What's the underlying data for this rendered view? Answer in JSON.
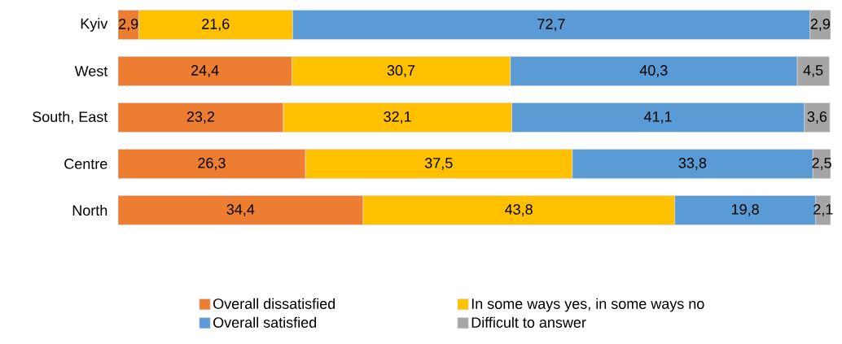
{
  "chart_data": {
    "type": "bar",
    "orientation": "horizontal",
    "stacked": true,
    "categories": [
      "Kyiv",
      "West",
      "South, East",
      "Centre",
      "North"
    ],
    "series": [
      {
        "name": "Overall dissatisfied",
        "color": "#ed7d31",
        "values": [
          2.9,
          24.4,
          23.2,
          26.3,
          34.4
        ],
        "value_labels": [
          "2,9",
          "24,4",
          "23,2",
          "26,3",
          "34,4"
        ]
      },
      {
        "name": "In some ways yes, in some ways no",
        "color": "#ffc000",
        "values": [
          21.6,
          30.7,
          32.1,
          37.5,
          43.8
        ],
        "value_labels": [
          "21,6",
          "30,7",
          "32,1",
          "37,5",
          "43,8"
        ]
      },
      {
        "name": "Overall satisfied",
        "color": "#5b9bd5",
        "values": [
          72.7,
          40.3,
          41.1,
          33.8,
          19.8
        ],
        "value_labels": [
          "72,7",
          "40,3",
          "41,1",
          "33,8",
          "19,8"
        ]
      },
      {
        "name": "Difficult to answer",
        "color": "#a5a5a5",
        "values": [
          2.9,
          4.5,
          3.6,
          2.5,
          2.1
        ],
        "value_labels": [
          "2,9",
          "4,5",
          "3,6",
          "2,5",
          "2,1"
        ]
      }
    ],
    "xlim": [
      0,
      100.1
    ],
    "tick_labels": "y",
    "legend": "bottom"
  }
}
